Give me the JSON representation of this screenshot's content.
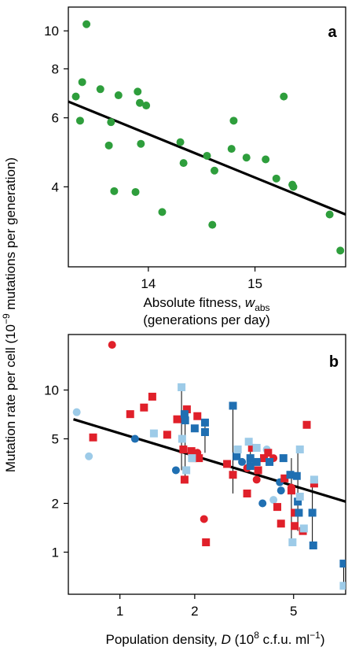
{
  "colors": {
    "green": "#2e9e3c",
    "red": "#e0202a",
    "dark_blue": "#1f6fb2",
    "light_blue": "#9dcbe8",
    "fit_line": "#000000",
    "pair_line": "#000000"
  },
  "shared_ylabel": {
    "prefix": "Mutation rate per cell  (10",
    "sup": "−9",
    "suffix": " mutations per generation)"
  },
  "chart_data": [
    {
      "type": "scatter",
      "panel_label": "a",
      "xscale": "linear",
      "yscale": "log",
      "xlim": [
        13.25,
        15.85
      ],
      "ylim": [
        2.5,
        11.5
      ],
      "xticks": [
        "14",
        "15"
      ],
      "xtick_values": [
        14,
        15
      ],
      "yticks": [
        "4",
        "6",
        "8",
        "10"
      ],
      "ytick_values": [
        4,
        6,
        8,
        10
      ],
      "xlabel_main": "Absolute fitness, ",
      "xlabel_var": "w",
      "xlabel_sub": "abs",
      "xlabel_line2": "(generations per day)",
      "fit": {
        "x": [
          13.25,
          15.85
        ],
        "y": [
          6.6,
          3.4
        ]
      },
      "points": [
        {
          "x": 13.32,
          "y": 6.8
        },
        {
          "x": 13.36,
          "y": 5.9
        },
        {
          "x": 13.38,
          "y": 7.4
        },
        {
          "x": 13.42,
          "y": 10.4
        },
        {
          "x": 13.55,
          "y": 7.1
        },
        {
          "x": 13.63,
          "y": 5.1
        },
        {
          "x": 13.65,
          "y": 5.85
        },
        {
          "x": 13.68,
          "y": 3.9
        },
        {
          "x": 13.72,
          "y": 6.85
        },
        {
          "x": 13.88,
          "y": 3.88
        },
        {
          "x": 13.9,
          "y": 7.0
        },
        {
          "x": 13.92,
          "y": 6.55
        },
        {
          "x": 13.93,
          "y": 5.15
        },
        {
          "x": 13.98,
          "y": 6.45
        },
        {
          "x": 14.13,
          "y": 3.45
        },
        {
          "x": 14.3,
          "y": 5.2
        },
        {
          "x": 14.33,
          "y": 4.6
        },
        {
          "x": 14.55,
          "y": 4.8
        },
        {
          "x": 14.6,
          "y": 3.2
        },
        {
          "x": 14.62,
          "y": 4.4
        },
        {
          "x": 14.78,
          "y": 5.0
        },
        {
          "x": 14.8,
          "y": 5.9
        },
        {
          "x": 14.92,
          "y": 4.75
        },
        {
          "x": 15.1,
          "y": 4.7
        },
        {
          "x": 15.2,
          "y": 4.2
        },
        {
          "x": 15.27,
          "y": 6.8
        },
        {
          "x": 15.35,
          "y": 4.05
        },
        {
          "x": 15.36,
          "y": 4.0
        },
        {
          "x": 15.7,
          "y": 3.4
        },
        {
          "x": 15.8,
          "y": 2.75
        }
      ]
    },
    {
      "type": "scatter",
      "panel_label": "b",
      "xscale": "log",
      "yscale": "log",
      "xlim": [
        0.62,
        8.1
      ],
      "ylim": [
        0.55,
        22
      ],
      "xticks": [
        "1",
        "2",
        "5"
      ],
      "xtick_values": [
        1,
        2,
        5
      ],
      "yticks": [
        "1",
        "2",
        "5",
        "10"
      ],
      "ytick_values": [
        1,
        2,
        5,
        10
      ],
      "xlabel_main": "Population density, ",
      "xlabel_var": "D",
      "xlabel_unit_a": " (10",
      "xlabel_unit_sup1": "8",
      "xlabel_unit_b": " c.f.u. ml",
      "xlabel_unit_sup2": "−1",
      "xlabel_unit_c": ")",
      "fit": {
        "x": [
          0.65,
          8.1
        ],
        "y": [
          6.6,
          2.05
        ]
      },
      "series": [
        {
          "marker": "circle",
          "color": "red",
          "points": [
            {
              "x": 0.93,
              "y": 19.0
            },
            {
              "x": 2.05,
              "y": 4.1
            },
            {
              "x": 2.18,
              "y": 1.6
            },
            {
              "x": 3.25,
              "y": 3.3
            },
            {
              "x": 3.55,
              "y": 2.8
            },
            {
              "x": 4.15,
              "y": 3.8
            },
            {
              "x": 4.9,
              "y": 2.5
            }
          ]
        },
        {
          "marker": "circle",
          "color": "dark_blue",
          "points": [
            {
              "x": 1.15,
              "y": 5.0
            },
            {
              "x": 1.68,
              "y": 3.2
            },
            {
              "x": 3.1,
              "y": 3.6
            },
            {
              "x": 3.75,
              "y": 2.0
            },
            {
              "x": 4.4,
              "y": 2.7
            },
            {
              "x": 4.45,
              "y": 2.4
            }
          ]
        },
        {
          "marker": "circle",
          "color": "light_blue",
          "points": [
            {
              "x": 0.67,
              "y": 7.3
            },
            {
              "x": 0.75,
              "y": 3.9
            },
            {
              "x": 3.9,
              "y": 4.3
            },
            {
              "x": 4.15,
              "y": 2.1
            }
          ]
        },
        {
          "marker": "square",
          "color": "red",
          "points": [
            {
              "x": 0.78,
              "y": 5.1
            },
            {
              "x": 1.1,
              "y": 7.1
            },
            {
              "x": 1.25,
              "y": 7.8
            },
            {
              "x": 1.35,
              "y": 9.1
            },
            {
              "x": 1.55,
              "y": 5.3
            },
            {
              "x": 1.7,
              "y": 6.6
            },
            {
              "x": 1.8,
              "y": 4.3
            },
            {
              "x": 1.82,
              "y": 2.8
            },
            {
              "x": 1.86,
              "y": 7.6
            },
            {
              "x": 1.94,
              "y": 4.2
            },
            {
              "x": 1.97,
              "y": 3.8
            },
            {
              "x": 2.05,
              "y": 6.9
            },
            {
              "x": 2.08,
              "y": 3.8
            },
            {
              "x": 2.22,
              "y": 1.15
            },
            {
              "x": 2.7,
              "y": 3.5
            },
            {
              "x": 2.85,
              "y": 3.0
            },
            {
              "x": 3.25,
              "y": 2.3
            },
            {
              "x": 3.4,
              "y": 4.4
            },
            {
              "x": 3.6,
              "y": 3.2
            },
            {
              "x": 3.8,
              "y": 3.8
            },
            {
              "x": 3.95,
              "y": 4.1
            },
            {
              "x": 4.3,
              "y": 1.9
            },
            {
              "x": 4.45,
              "y": 1.5
            },
            {
              "x": 4.6,
              "y": 2.85
            },
            {
              "x": 4.9,
              "y": 2.4
            },
            {
              "x": 5.05,
              "y": 1.75
            },
            {
              "x": 5.05,
              "y": 1.45
            },
            {
              "x": 5.45,
              "y": 1.35
            },
            {
              "x": 5.65,
              "y": 6.1
            },
            {
              "x": 6.05,
              "y": 2.65
            }
          ]
        },
        {
          "marker": "square",
          "color": "dark_blue",
          "points": [
            {
              "x": 1.82,
              "y": 7.1
            },
            {
              "x": 1.83,
              "y": 6.5
            },
            {
              "x": 2.0,
              "y": 5.8
            },
            {
              "x": 2.2,
              "y": 6.3
            },
            {
              "x": 2.2,
              "y": 5.5
            },
            {
              "x": 2.85,
              "y": 8.0
            },
            {
              "x": 2.95,
              "y": 3.9
            },
            {
              "x": 3.35,
              "y": 3.8
            },
            {
              "x": 3.35,
              "y": 3.4
            },
            {
              "x": 3.55,
              "y": 3.6
            },
            {
              "x": 4.0,
              "y": 3.6
            },
            {
              "x": 4.55,
              "y": 3.8
            },
            {
              "x": 4.85,
              "y": 3.0
            },
            {
              "x": 5.15,
              "y": 2.95
            },
            {
              "x": 5.2,
              "y": 2.05
            },
            {
              "x": 5.25,
              "y": 1.75
            },
            {
              "x": 5.95,
              "y": 1.75
            },
            {
              "x": 6.0,
              "y": 1.1
            },
            {
              "x": 7.95,
              "y": 0.85
            }
          ]
        },
        {
          "marker": "square",
          "color": "light_blue",
          "points": [
            {
              "x": 1.37,
              "y": 5.4
            },
            {
              "x": 1.77,
              "y": 10.4
            },
            {
              "x": 1.78,
              "y": 5.0
            },
            {
              "x": 1.85,
              "y": 3.2
            },
            {
              "x": 1.95,
              "y": 3.8
            },
            {
              "x": 2.98,
              "y": 4.3
            },
            {
              "x": 3.3,
              "y": 4.8
            },
            {
              "x": 3.55,
              "y": 4.4
            },
            {
              "x": 4.95,
              "y": 1.15
            },
            {
              "x": 5.3,
              "y": 4.3
            },
            {
              "x": 5.3,
              "y": 2.2
            },
            {
              "x": 5.5,
              "y": 1.4
            },
            {
              "x": 6.05,
              "y": 2.8
            },
            {
              "x": 7.95,
              "y": 0.62
            }
          ]
        }
      ],
      "pairs": [
        {
          "x": 1.77,
          "y1": 10.4,
          "y2": 3.2
        },
        {
          "x": 1.83,
          "y1": 7.6,
          "y2": 2.8
        },
        {
          "x": 2.2,
          "y1": 6.3,
          "y2": 4.1
        },
        {
          "x": 2.85,
          "y1": 8.0,
          "y2": 2.3
        },
        {
          "x": 3.35,
          "y1": 4.8,
          "y2": 3.4
        },
        {
          "x": 4.9,
          "y1": 3.8,
          "y2": 1.15
        },
        {
          "x": 5.2,
          "y1": 4.3,
          "y2": 1.35
        },
        {
          "x": 5.95,
          "y1": 2.8,
          "y2": 1.1
        },
        {
          "x": 7.95,
          "y1": 0.85,
          "y2": 0.62
        }
      ]
    }
  ]
}
